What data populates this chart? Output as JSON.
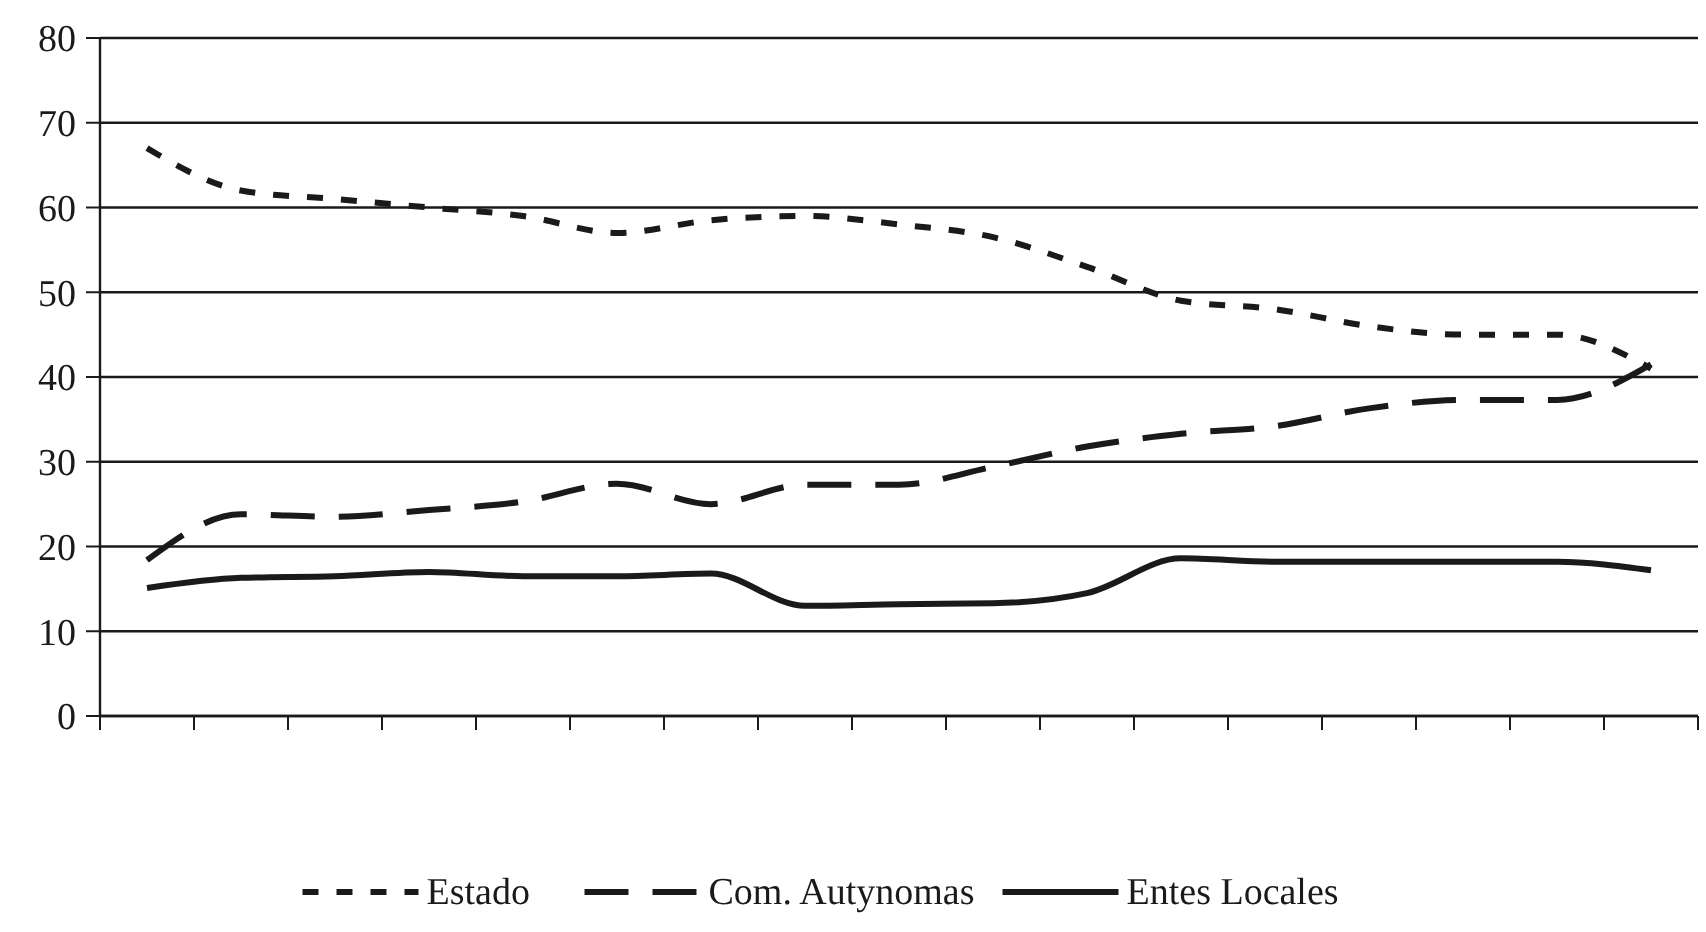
{
  "chart_data": {
    "type": "line",
    "categories": [
      null,
      null,
      null,
      null,
      null,
      null,
      null,
      null,
      null,
      null,
      null,
      null,
      null,
      null,
      null,
      null,
      null
    ],
    "series": [
      {
        "name": "Estado",
        "color": "#1a1a1a",
        "line_style": "dotted",
        "values": [
          67,
          62,
          61,
          60,
          59,
          57,
          58.5,
          59,
          58,
          56.5,
          53,
          49,
          48,
          46,
          45,
          45,
          41
        ]
      },
      {
        "name": "Com. Autynomas",
        "color": "#1a1a1a",
        "line_style": "dashed",
        "values": [
          18.4,
          23.8,
          23.5,
          24.3,
          25.3,
          27.4,
          25,
          27.3,
          27.3,
          29.4,
          31.8,
          33.3,
          34.2,
          36.3,
          37.3,
          37.3,
          41.5
        ]
      },
      {
        "name": "Entes Locales",
        "color": "#1a1a1a",
        "line_style": "solid",
        "values": [
          15.1,
          16.3,
          16.5,
          17,
          16.5,
          16.5,
          16.8,
          13,
          13.2,
          13.3,
          14.5,
          18.6,
          18.2,
          18.2,
          18.2,
          18.2,
          17.2
        ]
      }
    ],
    "ylim": [
      0,
      80
    ],
    "yticks": [
      0,
      10,
      20,
      30,
      40,
      50,
      60,
      70,
      80
    ],
    "grid": "y",
    "legend": "bottom"
  }
}
